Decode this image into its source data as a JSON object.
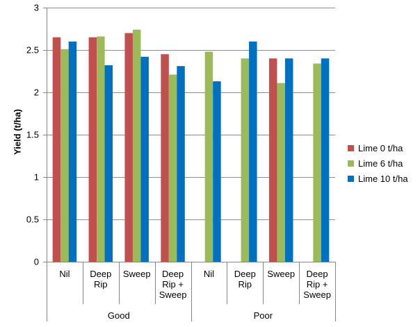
{
  "chart_data": {
    "type": "bar",
    "title": "",
    "xlabel": "",
    "ylabel": "Yield (t/ha)",
    "ylim": [
      0,
      3
    ],
    "yticks": [
      "0",
      "0.5",
      "1",
      "1.5",
      "2",
      "2.5",
      "3"
    ],
    "grid": true,
    "legend_position": "right",
    "groups": [
      {
        "label": "Good",
        "categories": [
          [
            "Nil"
          ],
          [
            "Deep",
            "Rip"
          ],
          [
            "Sweep"
          ],
          [
            "Deep",
            "Rip +",
            "Sweep"
          ]
        ]
      },
      {
        "label": "Poor",
        "categories": [
          [
            "Nil"
          ],
          [
            "Deep",
            "Rip"
          ],
          [
            "Sweep"
          ],
          [
            "Deep",
            "Rip +",
            "Sweep"
          ]
        ]
      }
    ],
    "series": [
      {
        "name": "Lime 0 t/ha",
        "color": "#c0504d",
        "values": [
          2.65,
          2.65,
          2.7,
          2.45,
          null,
          null,
          2.4,
          null
        ]
      },
      {
        "name": "Lime 6 t/ha",
        "color": "#9bbb59",
        "values": [
          2.51,
          2.66,
          2.74,
          2.21,
          2.48,
          2.4,
          2.11,
          2.34
        ]
      },
      {
        "name": "Lime 10 t/ha",
        "color": "#0070c0",
        "values": [
          2.6,
          2.32,
          2.42,
          2.31,
          2.13,
          2.6,
          2.4,
          2.4
        ]
      }
    ]
  }
}
